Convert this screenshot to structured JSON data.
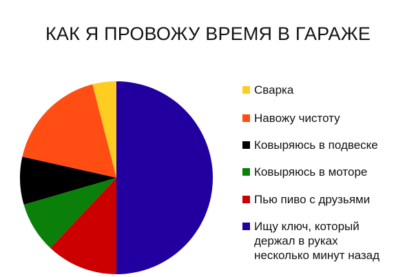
{
  "chart_data": {
    "type": "pie",
    "title": "КАК Я ПРОВОЖУ ВРЕМЯ В ГАРАЖЕ",
    "legend_placement": "right",
    "start": "top, slices counter-clockwise from legend order",
    "slices": [
      {
        "label": "Сварка",
        "value": 4,
        "color": "#ffcc22"
      },
      {
        "label": "Навожу чистоту",
        "value": 17.5,
        "color": "#ff4d14"
      },
      {
        "label": "Ковыряюсь в подвеске",
        "value": 8,
        "color": "#000000"
      },
      {
        "label": "Ковыряюсь в моторе",
        "value": 8.5,
        "color": "#0a7f0a"
      },
      {
        "label": "Пью пиво с друзьями",
        "value": 12,
        "color": "#cc0000"
      },
      {
        "label": "Ищу ключ, который\nдержал в руках\nнесколько минут назад",
        "value": 50,
        "color": "#2200a0"
      }
    ]
  }
}
